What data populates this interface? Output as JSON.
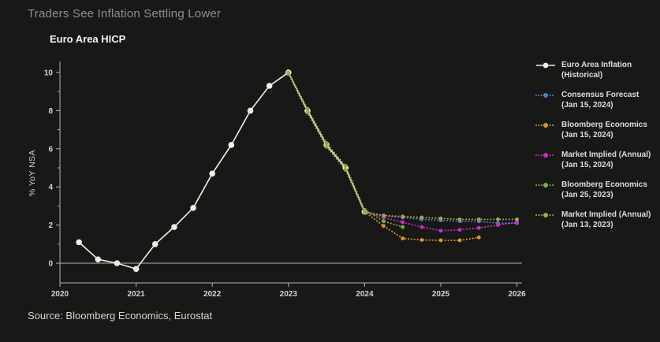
{
  "page": {
    "title": "Traders See Inflation Settling Lower",
    "source": "Source: Bloomberg Economics, Eurostat"
  },
  "chart_data": {
    "type": "line",
    "title": "Euro Area HICP",
    "ylabel": "% YoY NSA",
    "xlabel": "",
    "xlim": [
      2020,
      2026.15
    ],
    "ylim": [
      -1.05,
      10.6
    ],
    "x_ticks": [
      2020,
      2021,
      2022,
      2023,
      2024,
      2025,
      2026
    ],
    "y_ticks_major": [
      0,
      2,
      4,
      6,
      8,
      10
    ],
    "y_ticks_minor": [
      1,
      3,
      5,
      7,
      9
    ],
    "grid": false,
    "zero_line": true,
    "legend_position": "right",
    "axis_color": "#b3b3b0",
    "tick_label_color": "#d3d3d0",
    "series": [
      {
        "key": "historical",
        "name": "Euro Area Inflation (Historical)",
        "legend_label": "Euro Area Inflation",
        "legend_sublabel": "(Historical)",
        "color": "#f1f1ec",
        "style": "solid",
        "x": [
          2020.25,
          2020.5,
          2020.75,
          2021.0,
          2021.25,
          2021.5,
          2021.75,
          2022.0,
          2022.25,
          2022.5,
          2022.75,
          2023.0,
          2023.25,
          2023.5,
          2023.75,
          2024.0
        ],
        "y": [
          1.1,
          0.2,
          0.0,
          -0.3,
          1.0,
          1.9,
          2.9,
          4.7,
          6.2,
          8.0,
          9.3,
          10.0,
          8.0,
          6.2,
          5.0,
          2.7
        ]
      },
      {
        "key": "consensus-jan-15-2024",
        "name": "Consensus Forecast (Jan 15, 2024)",
        "legend_label": "Consensus Forecast",
        "legend_sublabel": "(Jan 15, 2024)",
        "color": "#4c80c8",
        "style": "dotted",
        "x": [
          2024.0,
          2024.25,
          2024.5,
          2024.75,
          2025.0,
          2025.25,
          2025.5,
          2025.75,
          2026.0
        ],
        "y": [
          2.7,
          2.5,
          2.4,
          2.3,
          2.25,
          2.2,
          2.2,
          2.1,
          2.1
        ]
      },
      {
        "key": "bloomberg-economics-jan-15-2024",
        "name": "Bloomberg Economics (Jan 15, 2024)",
        "legend_label": "Bloomberg Economics",
        "legend_sublabel": "(Jan 15, 2024)",
        "color": "#d6982f",
        "style": "dotted",
        "x": [
          2024.0,
          2024.25,
          2024.5,
          2024.75,
          2025.0,
          2025.25,
          2025.5
        ],
        "y": [
          2.7,
          1.95,
          1.3,
          1.22,
          1.2,
          1.2,
          1.35
        ]
      },
      {
        "key": "market-implied-jan-15-2024",
        "name": "Market Implied (Annual) (Jan 15, 2024)",
        "legend_label": "Market Implied (Annual)",
        "legend_sublabel": "(Jan 15, 2024)",
        "color": "#c92fc9",
        "style": "dotted",
        "x": [
          2024.0,
          2024.25,
          2024.5,
          2024.75,
          2025.0,
          2025.25,
          2025.5,
          2025.75,
          2026.0
        ],
        "y": [
          2.7,
          2.4,
          2.15,
          1.9,
          1.7,
          1.75,
          1.85,
          2.0,
          2.15
        ]
      },
      {
        "key": "bloomberg-economics-jan-25-2023",
        "name": "Bloomberg Economics (Jan 25, 2023)",
        "legend_label": "Bloomberg Economics",
        "legend_sublabel": "(Jan 25, 2023)",
        "color": "#7cb342",
        "style": "dotted",
        "x": [
          2023.0,
          2023.25,
          2023.5,
          2023.75,
          2024.0,
          2024.25,
          2024.5
        ],
        "y": [
          10.0,
          8.1,
          6.3,
          5.1,
          2.8,
          2.2,
          1.9
        ]
      },
      {
        "key": "market-implied-jan-13-2023",
        "name": "Market Implied (Annual) (Jan 13, 2023)",
        "legend_label": "Market Implied (Annual)",
        "legend_sublabel": "(Jan 13, 2023)",
        "color": "#ada242",
        "style": "dotted",
        "x": [
          2023.0,
          2023.25,
          2023.5,
          2023.75,
          2024.0,
          2024.25,
          2024.5,
          2024.75,
          2025.0,
          2025.25,
          2025.5,
          2025.75,
          2026.0
        ],
        "y": [
          9.95,
          7.9,
          6.1,
          4.9,
          2.65,
          2.5,
          2.45,
          2.4,
          2.35,
          2.3,
          2.3,
          2.3,
          2.3
        ]
      }
    ]
  }
}
